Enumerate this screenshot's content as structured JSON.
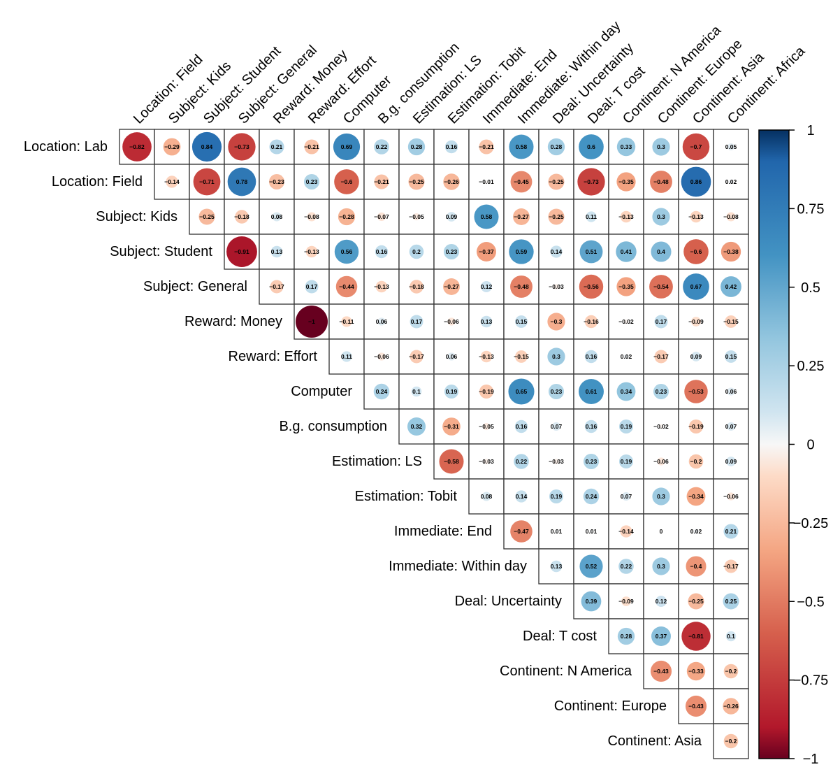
{
  "chart_data": {
    "type": "heatmap",
    "style": "correlation upper-triangle circles",
    "row_labels": [
      "Location: Lab",
      "Location: Field",
      "Subject: Kids",
      "Subject: Student",
      "Subject: General",
      "Reward: Money",
      "Reward: Effort",
      "Computer",
      "B.g. consumption",
      "Estimation: LS",
      "Estimation: Tobit",
      "Immediate: End",
      "Immediate: Within day",
      "Deal: Uncertainty",
      "Deal: T cost",
      "Continent: N America",
      "Continent: Europe",
      "Continent: Asia"
    ],
    "col_labels": [
      "Location: Field",
      "Subject: Kids",
      "Subject: Student",
      "Subject: General",
      "Reward: Money",
      "Reward: Effort",
      "Computer",
      "B.g. consumption",
      "Estimation: LS",
      "Estimation: Tobit",
      "Immediate: End",
      "Immediate: Within day",
      "Deal: Uncertainty",
      "Deal: T cost",
      "Continent: N America",
      "Continent: Europe",
      "Continent: Asia",
      "Continent: Africa"
    ],
    "values": [
      [
        "−0.82",
        "−0.29",
        "0.84",
        "−0.73",
        "0.21",
        "−0.21",
        "0.69",
        "0.22",
        "0.28",
        "0.16",
        "−0.21",
        "0.58",
        "0.28",
        "0.6",
        "0.33",
        "0.3",
        "−0.7",
        "0.05"
      ],
      [
        "−0.14",
        "−0.71",
        "0.78",
        "−0.23",
        "0.23",
        "−0.6",
        "−0.21",
        "−0.25",
        "−0.26",
        "−0.01",
        "−0.45",
        "−0.25",
        "−0.73",
        "−0.35",
        "−0.48",
        "0.86",
        "0.02"
      ],
      [
        "−0.25",
        "−0.18",
        "0.08",
        "−0.08",
        "−0.28",
        "−0.07",
        "−0.05",
        "0.09",
        "0.58",
        "−0.27",
        "−0.25",
        "0.11",
        "−0.13",
        "0.3",
        "−0.13",
        "−0.08"
      ],
      [
        "−0.91",
        "0.13",
        "−0.13",
        "0.56",
        "0.16",
        "0.2",
        "0.23",
        "−0.37",
        "0.59",
        "0.14",
        "0.51",
        "0.41",
        "0.4",
        "−0.6",
        "−0.38"
      ],
      [
        "−0.17",
        "0.17",
        "−0.44",
        "−0.13",
        "−0.18",
        "−0.27",
        "0.12",
        "−0.48",
        "−0.03",
        "−0.56",
        "−0.35",
        "−0.54",
        "0.67",
        "0.42"
      ],
      [
        "−1",
        "−0.11",
        "0.06",
        "0.17",
        "−0.06",
        "0.13",
        "0.15",
        "−0.3",
        "−0.16",
        "−0.02",
        "0.17",
        "−0.09",
        "−0.15"
      ],
      [
        "0.11",
        "−0.06",
        "−0.17",
        "0.06",
        "−0.13",
        "−0.15",
        "0.3",
        "0.16",
        "0.02",
        "−0.17",
        "0.09",
        "0.15"
      ],
      [
        "0.24",
        "0.1",
        "0.19",
        "−0.19",
        "0.65",
        "0.23",
        "0.61",
        "0.34",
        "0.23",
        "−0.53",
        "0.06"
      ],
      [
        "0.32",
        "−0.31",
        "−0.05",
        "0.16",
        "0.07",
        "0.16",
        "0.19",
        "−0.02",
        "−0.19",
        "0.07"
      ],
      [
        "−0.58",
        "−0.03",
        "0.22",
        "−0.03",
        "0.23",
        "0.19",
        "−0.06",
        "−0.2",
        "0.09"
      ],
      [
        "0.08",
        "0.14",
        "0.19",
        "0.24",
        "0.07",
        "0.3",
        "−0.34",
        "−0.06"
      ],
      [
        "−0.47",
        "0.01",
        "0.01",
        "−0.14",
        "0",
        "0.02",
        "0.21"
      ],
      [
        "0.13",
        "0.52",
        "0.22",
        "0.3",
        "−0.4",
        "−0.17"
      ],
      [
        "0.39",
        "−0.09",
        "0.12",
        "−0.25",
        "0.25"
      ],
      [
        "0.28",
        "0.37",
        "−0.81",
        "0.1"
      ],
      [
        "−0.43",
        "−0.33",
        "−0.2"
      ],
      [
        "−0.43",
        "−0.26"
      ],
      [
        "−0.2"
      ]
    ],
    "colorbar": {
      "range": [
        -1,
        1
      ],
      "tick_labels": [
        "1",
        "0.75",
        "0.5",
        "0.25",
        "0",
        "−0.25",
        "−0.5",
        "−0.75",
        "−1"
      ],
      "colors": {
        "neg": "#b2182b",
        "mid": "#f7f7f7",
        "pos": "#2166ac"
      }
    },
    "legend_placement": "right"
  }
}
